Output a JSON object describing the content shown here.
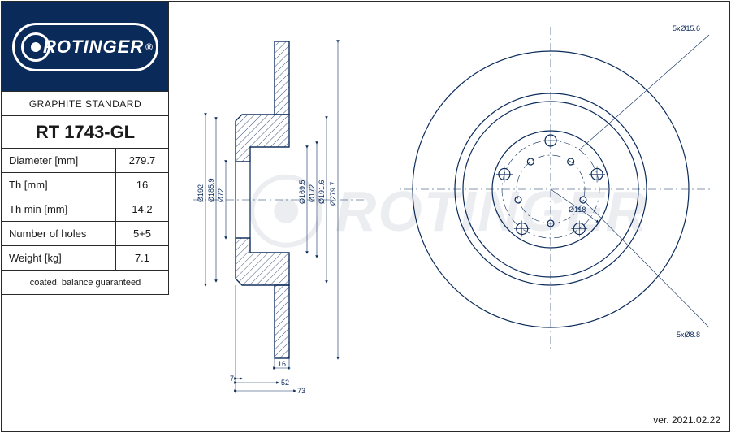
{
  "logo": {
    "brand": "ROTINGER",
    "registered": "®"
  },
  "spec": {
    "subtitle": "GRAPHITE STANDARD",
    "part_number": "RT 1743-GL",
    "rows": [
      {
        "label": "Diameter [mm]",
        "value": "279.7"
      },
      {
        "label": "Th [mm]",
        "value": "16"
      },
      {
        "label": "Th min [mm]",
        "value": "14.2"
      },
      {
        "label": "Number of holes",
        "value": "5+5"
      },
      {
        "label": "Weight [kg]",
        "value": "7.1"
      }
    ],
    "footnote": "coated, balance guaranteed"
  },
  "version": "ver. 2021.02.22",
  "colors": {
    "brand_blue": "#0a2a5a",
    "line": "#0a2a5a",
    "border": "#2a2a2a",
    "watermark": "#d8dde4",
    "white": "#ffffff"
  },
  "xsection": {
    "diameters": [
      "Ø192",
      "Ø185.9",
      "Ø72",
      "Ø169.5",
      "Ø172",
      "Ø191.6",
      "Ø279.7"
    ],
    "thickness_dims": [
      "7",
      "16",
      "52",
      "73"
    ]
  },
  "front": {
    "outer_diameter": 279.7,
    "center_bore_label": "Ø118",
    "bolt_pattern_outer_label": "5xØ15.6",
    "bolt_pattern_inner_label": "5xØ8.8",
    "outer_holes": 5,
    "inner_holes": 5,
    "outer_hole_d": 15.6,
    "inner_hole_d": 8.8,
    "outer_pcd": 60,
    "inner_pcd": 42,
    "disc_r": 170,
    "step_r1": 118,
    "step_r2": 108,
    "hub_r": 72
  }
}
